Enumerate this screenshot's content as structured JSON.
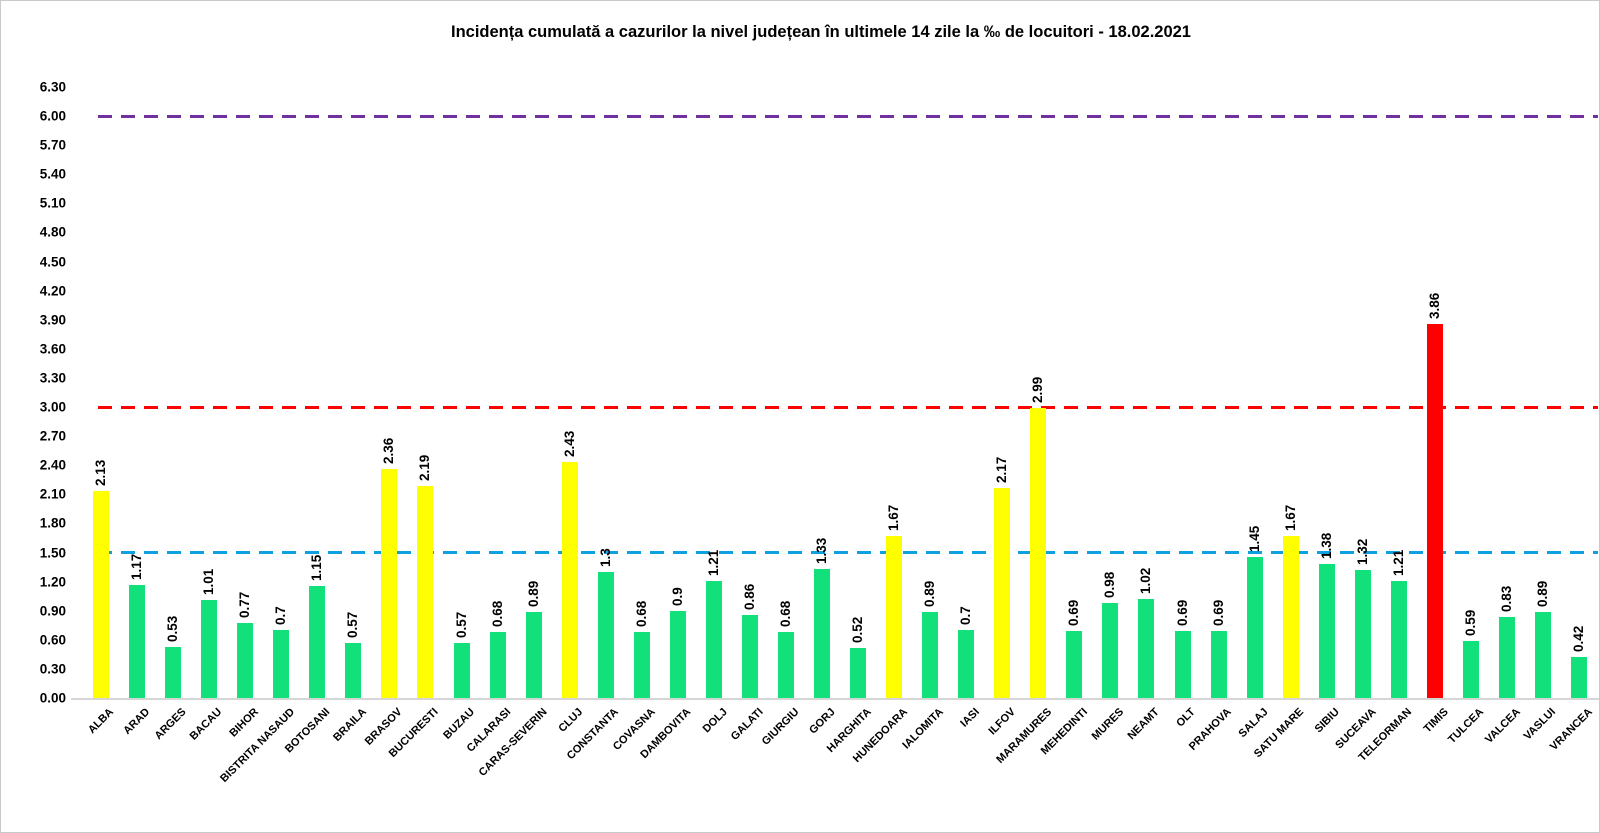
{
  "chart_data": {
    "type": "bar",
    "title": "Incidența cumulată a cazurilor la nivel județean în ultimele 14 zile la ‰ de locuitori - 18.02.2021",
    "categories": [
      "ALBA",
      "ARAD",
      "ARGES",
      "BACAU",
      "BIHOR",
      "BISTRITA NASAUD",
      "BOTOSANI",
      "BRAILA",
      "BRASOV",
      "BUCURESTI",
      "BUZAU",
      "CALARASI",
      "CARAS-SEVERIN",
      "CLUJ",
      "CONSTANTA",
      "COVASNA",
      "DAMBOVITA",
      "DOLJ",
      "GALATI",
      "GIURGIU",
      "GORJ",
      "HARGHITA",
      "HUNEDOARA",
      "IALOMITA",
      "IASI",
      "ILFOV",
      "MARAMURES",
      "MEHEDINTI",
      "MURES",
      "NEAMT",
      "OLT",
      "PRAHOVA",
      "SALAJ",
      "SATU MARE",
      "SIBIU",
      "SUCEAVA",
      "TELEORMAN",
      "TIMIS",
      "TULCEA",
      "VALCEA",
      "VASLUI",
      "VRANCEA"
    ],
    "values": [
      2.13,
      1.17,
      0.53,
      1.01,
      0.77,
      0.7,
      1.15,
      0.57,
      2.36,
      2.19,
      0.57,
      0.68,
      0.89,
      2.43,
      1.3,
      0.68,
      0.9,
      1.21,
      0.86,
      0.68,
      1.33,
      0.52,
      1.67,
      0.89,
      0.7,
      2.17,
      2.99,
      0.69,
      0.98,
      1.02,
      0.69,
      0.69,
      1.45,
      1.67,
      1.38,
      1.32,
      1.21,
      3.86,
      0.59,
      0.83,
      0.89,
      0.42
    ],
    "value_labels": [
      "2.13",
      "1.17",
      "0.53",
      "1.01",
      "0.77",
      "0.7",
      "1.15",
      "0.57",
      "2.36",
      "2.19",
      "0.57",
      "0.68",
      "0.89",
      "2.43",
      "1.3",
      "0.68",
      "0.9",
      "1.21",
      "0.86",
      "0.68",
      "1.33",
      "0.52",
      "1.67",
      "0.89",
      "0.7",
      "2.17",
      "2.99",
      "0.69",
      "0.98",
      "1.02",
      "0.69",
      "0.69",
      "1.45",
      "1.67",
      "1.38",
      "1.32",
      "1.21",
      "3.86",
      "0.59",
      "0.83",
      "0.89",
      "0.42"
    ],
    "bar_color_names": [
      "yellow",
      "green",
      "green",
      "green",
      "green",
      "green",
      "green",
      "green",
      "yellow",
      "yellow",
      "green",
      "green",
      "green",
      "yellow",
      "green",
      "green",
      "green",
      "green",
      "green",
      "green",
      "green",
      "green",
      "yellow",
      "green",
      "green",
      "yellow",
      "yellow",
      "green",
      "green",
      "green",
      "green",
      "green",
      "green",
      "yellow",
      "green",
      "green",
      "green",
      "red",
      "green",
      "green",
      "green",
      "green"
    ],
    "palette": {
      "green": "#12E07A",
      "yellow": "#FFFF00",
      "red": "#FF0000"
    },
    "yticks": [
      "0.00",
      "0.30",
      "0.60",
      "0.90",
      "1.20",
      "1.50",
      "1.80",
      "2.10",
      "2.40",
      "2.70",
      "3.00",
      "3.30",
      "3.60",
      "3.90",
      "4.20",
      "4.50",
      "4.80",
      "5.10",
      "5.40",
      "5.70",
      "6.00",
      "6.30"
    ],
    "ylim": [
      0,
      6.3
    ],
    "xlabel": "",
    "ylabel": "",
    "grid": false,
    "legend": "none",
    "thresholds": [
      {
        "value": 6.0,
        "color": "#7030A0"
      },
      {
        "value": 3.0,
        "color": "#FF0000"
      },
      {
        "value": 1.5,
        "color": "#0FA0E0"
      }
    ]
  }
}
